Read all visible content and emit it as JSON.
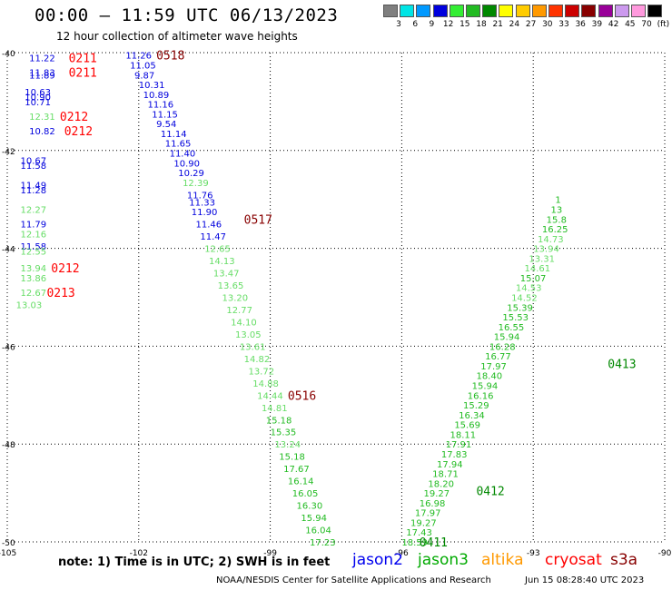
{
  "header": {
    "title": "00:00 – 11:59 UTC 06/13/2023",
    "subtitle": "12 hour collection of altimeter wave heights"
  },
  "color_scale": {
    "unit": "(ft)",
    "bins": [
      {
        "label": "3",
        "color": "#7f7f7f"
      },
      {
        "label": "6",
        "color": "#00e5e5"
      },
      {
        "label": "9",
        "color": "#0099ff"
      },
      {
        "label": "12",
        "color": "#0000dd"
      },
      {
        "label": "15",
        "color": "#33ee33"
      },
      {
        "label": "18",
        "color": "#22bb22"
      },
      {
        "label": "21",
        "color": "#008800"
      },
      {
        "label": "24",
        "color": "#ffff00"
      },
      {
        "label": "27",
        "color": "#ffcc00"
      },
      {
        "label": "30",
        "color": "#ff9900"
      },
      {
        "label": "33",
        "color": "#ff3300"
      },
      {
        "label": "36",
        "color": "#cc0000"
      },
      {
        "label": "39",
        "color": "#880000"
      },
      {
        "label": "42",
        "color": "#990099"
      },
      {
        "label": "45",
        "color": "#cc99ee"
      },
      {
        "label": "70",
        "color": "#ff99dd"
      },
      {
        "label": "",
        "color": "#000000"
      }
    ]
  },
  "axes": {
    "x_ticks": [
      "-105",
      "-102",
      "-99",
      "-96",
      "-93",
      "-90"
    ],
    "y_ticks": [
      "-40",
      "-42",
      "-44",
      "-46",
      "-48",
      "-50"
    ]
  },
  "chart_data": {
    "type": "scatter",
    "xlim": [
      -105,
      -90
    ],
    "ylim": [
      -50,
      -40
    ],
    "grid": true,
    "tracks": [
      {
        "satellite": "jason2",
        "color": "#0000dd",
        "label_color": "#ff0000",
        "labels": [
          {
            "text": "0211",
            "x": -103.6,
            "y": -40.1
          },
          {
            "text": "0211",
            "x": -103.6,
            "y": -40.4
          },
          {
            "text": "0212",
            "x": -103.8,
            "y": -41.3
          },
          {
            "text": "0212",
            "x": -103.7,
            "y": -41.6
          },
          {
            "text": "0212",
            "x": -104.0,
            "y": -44.4
          },
          {
            "text": "0213",
            "x": -104.1,
            "y": -44.9
          }
        ],
        "points": [
          {
            "x": -104.5,
            "y": -40.1,
            "v": "11.22"
          },
          {
            "x": -104.5,
            "y": -40.4,
            "v": "11.83"
          },
          {
            "x": -104.5,
            "y": -40.45,
            "v": "11.89"
          },
          {
            "x": -104.6,
            "y": -40.8,
            "v": "10.63"
          },
          {
            "x": -104.6,
            "y": -40.9,
            "v": "10.90"
          },
          {
            "x": -104.6,
            "y": -41.0,
            "v": "10.71"
          },
          {
            "x": -104.5,
            "y": -41.3,
            "v": "12.31",
            "color": "#66dd66"
          },
          {
            "x": -104.5,
            "y": -41.6,
            "v": "10.82"
          },
          {
            "x": -104.7,
            "y": -42.2,
            "v": "10.67"
          },
          {
            "x": -104.7,
            "y": -42.3,
            "v": "11.58"
          },
          {
            "x": -104.7,
            "y": -42.7,
            "v": "11.49"
          },
          {
            "x": -104.7,
            "y": -42.8,
            "v": "11.28"
          },
          {
            "x": -104.7,
            "y": -43.2,
            "v": "12.27",
            "color": "#66dd66"
          },
          {
            "x": -104.7,
            "y": -43.5,
            "v": "11.79"
          },
          {
            "x": -104.7,
            "y": -43.7,
            "v": "12.16",
            "color": "#66dd66"
          },
          {
            "x": -104.7,
            "y": -43.95,
            "v": "11.58"
          },
          {
            "x": -104.7,
            "y": -44.05,
            "v": "12.55",
            "color": "#66dd66"
          },
          {
            "x": -104.7,
            "y": -44.4,
            "v": "13.94",
            "color": "#66dd66"
          },
          {
            "x": -104.7,
            "y": -44.6,
            "v": "13.86",
            "color": "#66dd66"
          },
          {
            "x": -104.7,
            "y": -44.9,
            "v": "12.67",
            "color": "#66dd66"
          },
          {
            "x": -104.8,
            "y": -45.15,
            "v": "13.03",
            "color": "#66dd66"
          }
        ]
      },
      {
        "satellite": "s3a_0518",
        "color": "#0000dd",
        "label_color": "#880000",
        "labels": [
          {
            "text": "0518",
            "x": -101.6,
            "y": -40.05
          },
          {
            "text": "0517",
            "x": -99.6,
            "y": -43.4
          },
          {
            "text": "0516",
            "x": -98.6,
            "y": -47.0
          }
        ],
        "points": [
          {
            "x": -102.3,
            "y": -40.05,
            "v": "11.26"
          },
          {
            "x": -102.2,
            "y": -40.25,
            "v": "11.05"
          },
          {
            "x": -102.1,
            "y": -40.45,
            "v": "9.87"
          },
          {
            "x": -102.0,
            "y": -40.65,
            "v": "10.31"
          },
          {
            "x": -101.9,
            "y": -40.85,
            "v": "10.89"
          },
          {
            "x": -101.8,
            "y": -41.05,
            "v": "11.16"
          },
          {
            "x": -101.7,
            "y": -41.25,
            "v": "11.15"
          },
          {
            "x": -101.6,
            "y": -41.45,
            "v": "9.54"
          },
          {
            "x": -101.5,
            "y": -41.65,
            "v": "11.14"
          },
          {
            "x": -101.4,
            "y": -41.85,
            "v": "11.65"
          },
          {
            "x": -101.3,
            "y": -42.05,
            "v": "11.40"
          },
          {
            "x": -101.2,
            "y": -42.25,
            "v": "10.90"
          },
          {
            "x": -101.1,
            "y": -42.45,
            "v": "10.29"
          },
          {
            "x": -101.0,
            "y": -42.65,
            "v": "12.39",
            "color": "#66dd66"
          },
          {
            "x": -100.9,
            "y": -42.9,
            "v": "11.76"
          },
          {
            "x": -100.85,
            "y": -43.05,
            "v": "11.33"
          },
          {
            "x": -100.8,
            "y": -43.25,
            "v": "11.90"
          },
          {
            "x": -100.7,
            "y": -43.5,
            "v": "11.46"
          },
          {
            "x": -100.6,
            "y": -43.75,
            "v": "11.47"
          },
          {
            "x": -100.5,
            "y": -44.0,
            "v": "12.65",
            "color": "#66dd66"
          },
          {
            "x": -100.4,
            "y": -44.25,
            "v": "14.13",
            "color": "#66dd66"
          },
          {
            "x": -100.3,
            "y": -44.5,
            "v": "13.47",
            "color": "#66dd66"
          },
          {
            "x": -100.2,
            "y": -44.75,
            "v": "13.65",
            "color": "#66dd66"
          },
          {
            "x": -100.1,
            "y": -45.0,
            "v": "13.20",
            "color": "#66dd66"
          },
          {
            "x": -100.0,
            "y": -45.25,
            "v": "12.77",
            "color": "#66dd66"
          },
          {
            "x": -99.9,
            "y": -45.5,
            "v": "14.10",
            "color": "#66dd66"
          },
          {
            "x": -99.8,
            "y": -45.75,
            "v": "13.05",
            "color": "#66dd66"
          },
          {
            "x": -99.7,
            "y": -46.0,
            "v": "13.61",
            "color": "#66dd66"
          },
          {
            "x": -99.6,
            "y": -46.25,
            "v": "14.82",
            "color": "#66dd66"
          },
          {
            "x": -99.5,
            "y": -46.5,
            "v": "13.72",
            "color": "#66dd66"
          },
          {
            "x": -99.4,
            "y": -46.75,
            "v": "14.88",
            "color": "#66dd66"
          },
          {
            "x": -99.3,
            "y": -47.0,
            "v": "14.44",
            "color": "#66dd66"
          },
          {
            "x": -99.2,
            "y": -47.25,
            "v": "14.81",
            "color": "#66dd66"
          },
          {
            "x": -99.1,
            "y": -47.5,
            "v": "15.18",
            "color": "#22bb22"
          },
          {
            "x": -99.0,
            "y": -47.75,
            "v": "15.35",
            "color": "#22bb22"
          },
          {
            "x": -98.9,
            "y": -48.0,
            "v": "13.24",
            "color": "#66dd66"
          },
          {
            "x": -98.8,
            "y": -48.25,
            "v": "15.18",
            "color": "#22bb22"
          },
          {
            "x": -98.7,
            "y": -48.5,
            "v": "17.67",
            "color": "#22bb22"
          },
          {
            "x": -98.6,
            "y": -48.75,
            "v": "16.14",
            "color": "#22bb22"
          },
          {
            "x": -98.5,
            "y": -49.0,
            "v": "16.05",
            "color": "#22bb22"
          },
          {
            "x": -98.4,
            "y": -49.25,
            "v": "16.30",
            "color": "#22bb22"
          },
          {
            "x": -98.3,
            "y": -49.5,
            "v": "15.94",
            "color": "#22bb22"
          },
          {
            "x": -98.2,
            "y": -49.75,
            "v": "16.04",
            "color": "#22bb22"
          },
          {
            "x": -98.1,
            "y": -50.0,
            "v": "17.23",
            "color": "#22bb22"
          }
        ]
      },
      {
        "satellite": "jason3_0411",
        "color": "#22bb22",
        "label_color": "#008800",
        "labels": [
          {
            "text": "0411",
            "x": -95.6,
            "y": -50.0
          },
          {
            "text": "0412",
            "x": -94.3,
            "y": -48.95
          },
          {
            "text": "0413",
            "x": -91.3,
            "y": -46.35
          }
        ],
        "points": [
          {
            "x": -96.0,
            "y": -50.0,
            "v": "18.59"
          },
          {
            "x": -95.9,
            "y": -49.8,
            "v": "17.43"
          },
          {
            "x": -95.8,
            "y": -49.6,
            "v": "19.27"
          },
          {
            "x": -95.7,
            "y": -49.4,
            "v": "17.97"
          },
          {
            "x": -95.6,
            "y": -49.2,
            "v": "16.98"
          },
          {
            "x": -95.5,
            "y": -49.0,
            "v": "19.27"
          },
          {
            "x": -95.4,
            "y": -48.8,
            "v": "18.20"
          },
          {
            "x": -95.3,
            "y": -48.6,
            "v": "18.71"
          },
          {
            "x": -95.2,
            "y": -48.4,
            "v": "17.94"
          },
          {
            "x": -95.1,
            "y": -48.2,
            "v": "17.83"
          },
          {
            "x": -95.0,
            "y": -48.0,
            "v": "17.91"
          },
          {
            "x": -94.9,
            "y": -47.8,
            "v": "18.11"
          },
          {
            "x": -94.8,
            "y": -47.6,
            "v": "15.69"
          },
          {
            "x": -94.7,
            "y": -47.4,
            "v": "16.34"
          },
          {
            "x": -94.6,
            "y": -47.2,
            "v": "15.29"
          },
          {
            "x": -94.5,
            "y": -47.0,
            "v": "16.16"
          },
          {
            "x": -94.4,
            "y": -46.8,
            "v": "15.94"
          },
          {
            "x": -94.3,
            "y": -46.6,
            "v": "18.40"
          },
          {
            "x": -94.2,
            "y": -46.4,
            "v": "17.97"
          },
          {
            "x": -94.1,
            "y": -46.2,
            "v": "16.77"
          },
          {
            "x": -94.0,
            "y": -46.0,
            "v": "16.28"
          },
          {
            "x": -93.9,
            "y": -45.8,
            "v": "15.94"
          },
          {
            "x": -93.8,
            "y": -45.6,
            "v": "16.55"
          },
          {
            "x": -93.7,
            "y": -45.4,
            "v": "15.53"
          },
          {
            "x": -93.6,
            "y": -45.2,
            "v": "15.39"
          },
          {
            "x": -93.5,
            "y": -45.0,
            "v": "14.52",
            "color": "#66dd66"
          },
          {
            "x": -93.4,
            "y": -44.8,
            "v": "14.53",
            "color": "#66dd66"
          },
          {
            "x": -93.3,
            "y": -44.6,
            "v": "15.07"
          },
          {
            "x": -93.2,
            "y": -44.4,
            "v": "14.61",
            "color": "#66dd66"
          },
          {
            "x": -93.1,
            "y": -44.2,
            "v": "13.31",
            "color": "#66dd66"
          },
          {
            "x": -93.0,
            "y": -44.0,
            "v": "13.94",
            "color": "#66dd66"
          },
          {
            "x": -92.9,
            "y": -43.8,
            "v": "14.73",
            "color": "#66dd66"
          },
          {
            "x": -92.8,
            "y": -43.6,
            "v": "16.25"
          },
          {
            "x": -92.7,
            "y": -43.4,
            "v": "15.8"
          },
          {
            "x": -92.6,
            "y": -43.2,
            "v": "13"
          },
          {
            "x": -92.5,
            "y": -43.0,
            "v": "1"
          }
        ]
      }
    ]
  },
  "note": "note:  1) Time is in UTC;  2) SWH is in feet",
  "satellite_legend": [
    {
      "name": "jason2",
      "color": "#0000ee"
    },
    {
      "name": "jason3",
      "color": "#00aa00"
    },
    {
      "name": "altika",
      "color": "#ff9900"
    },
    {
      "name": "cryosat",
      "color": "#ff0000"
    },
    {
      "name": "s3a",
      "color": "#880000"
    }
  ],
  "footer": {
    "credit": "NOAA/NESDIS Center for Satellite Applications and Research",
    "generated": "Jun 15 08:28:40 UTC 2023"
  }
}
